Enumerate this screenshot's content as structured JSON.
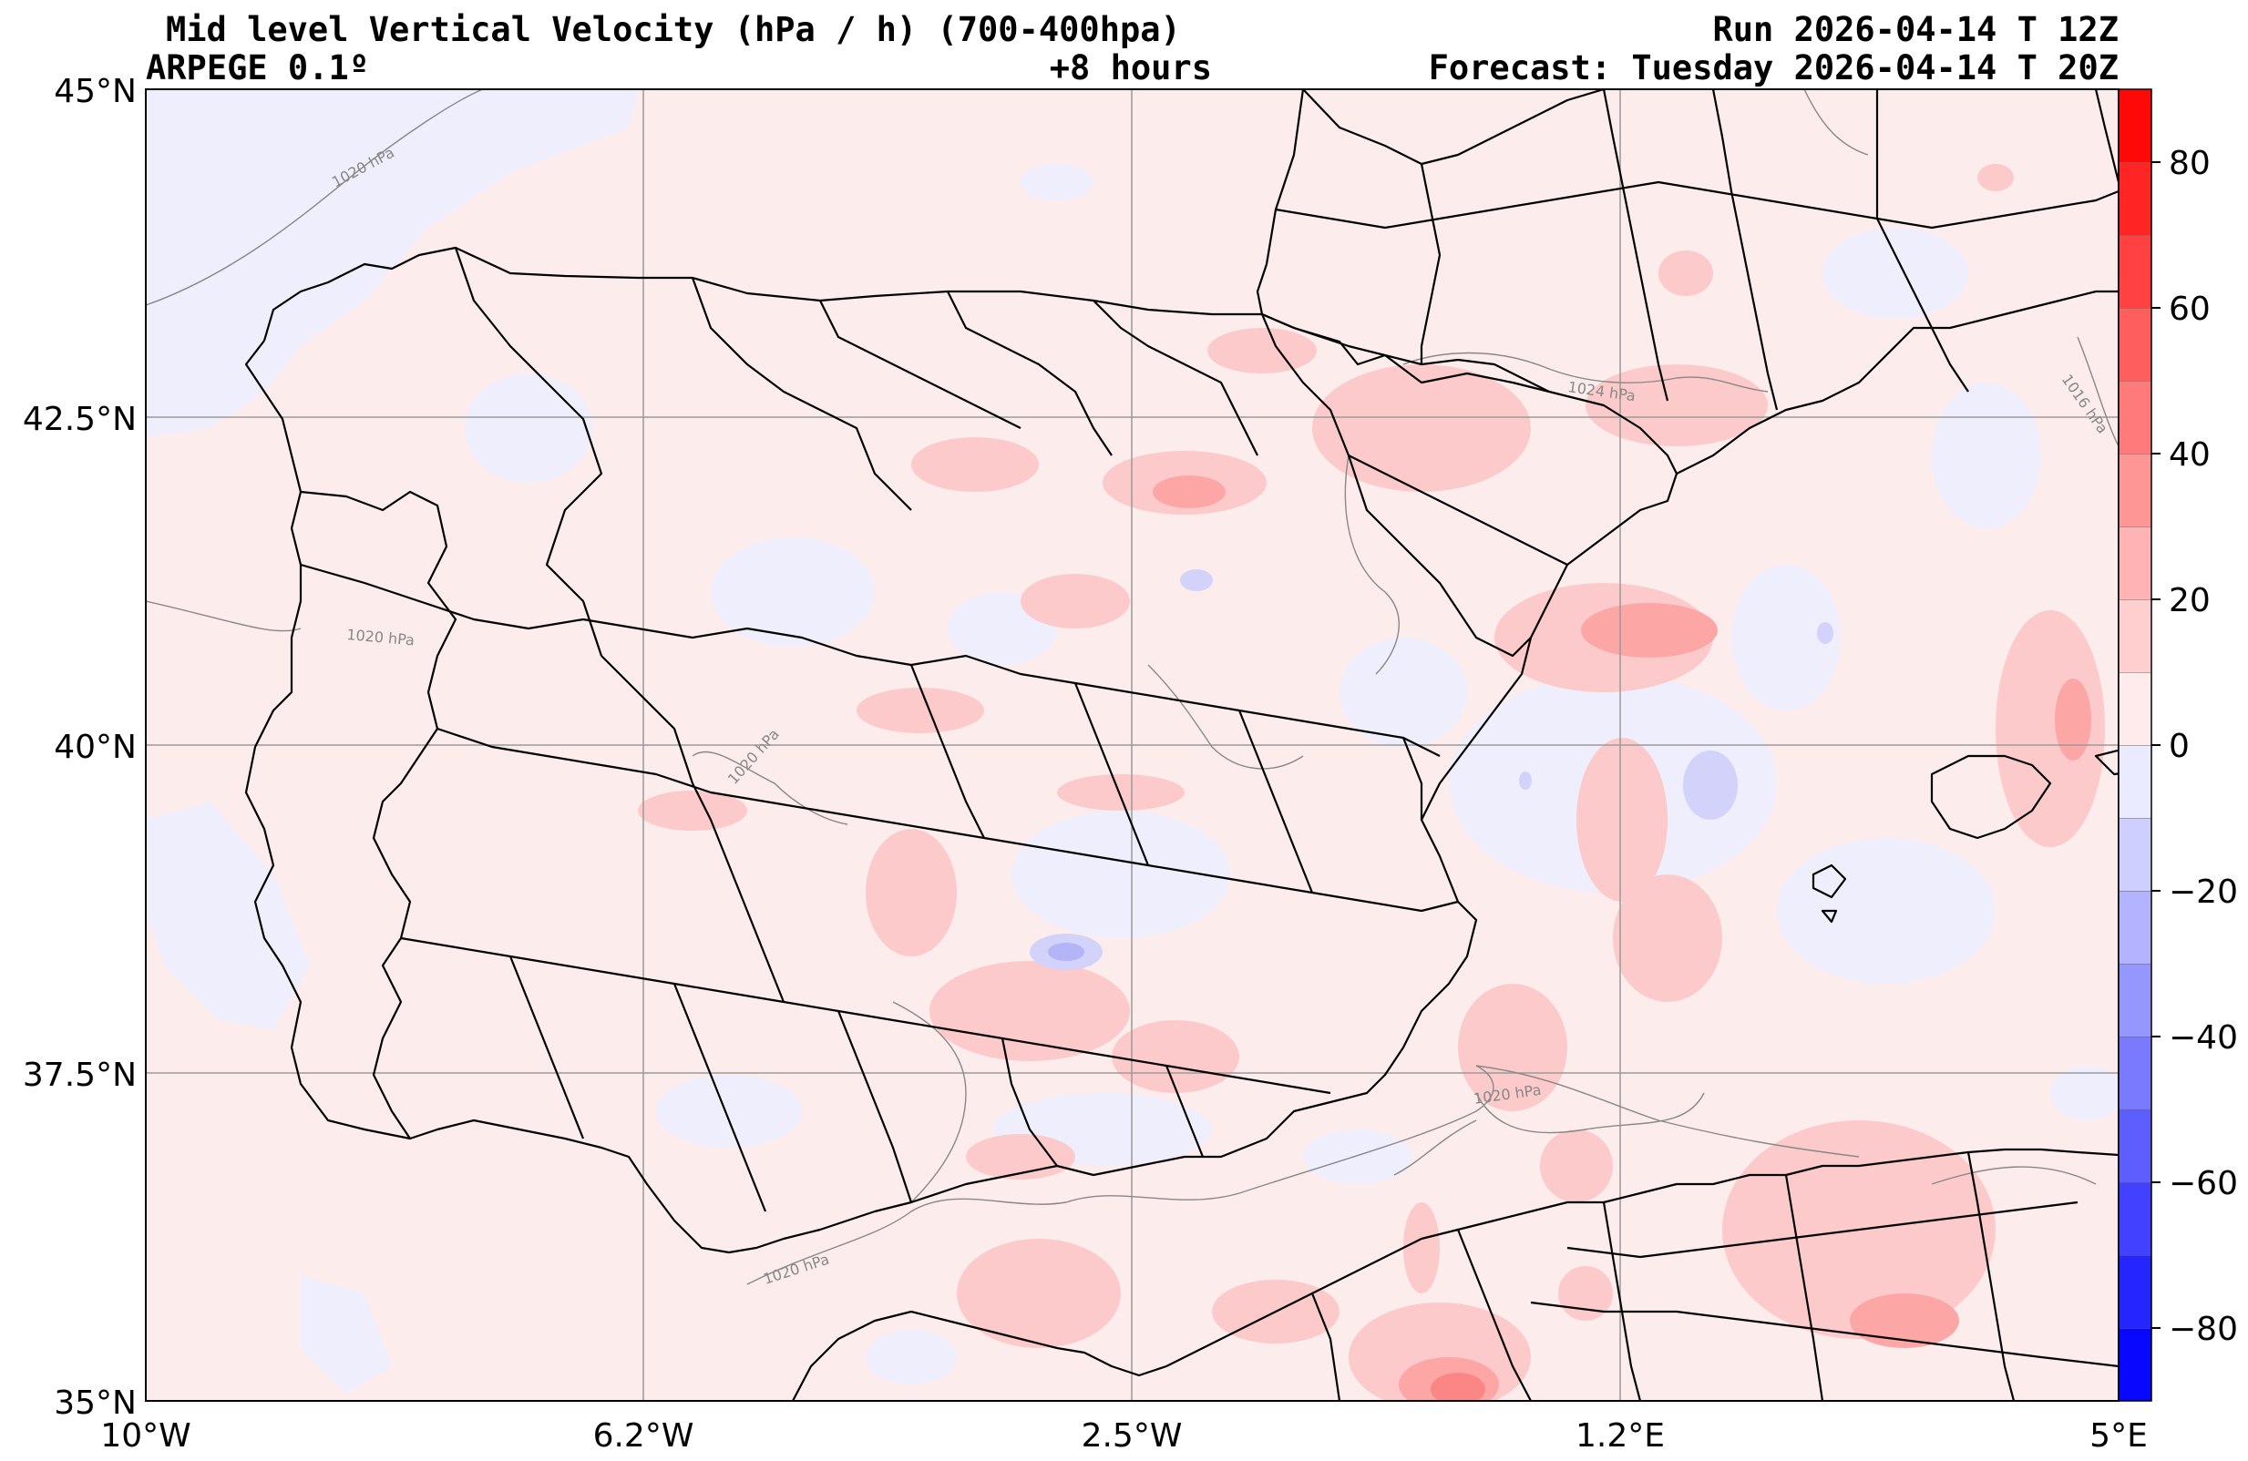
{
  "header": {
    "title": "Mid level Vertical Velocity (hPa / h)  (700-400hpa)",
    "model": "ARPEGE 0.1º",
    "lead": "+8 hours",
    "run": "Run 2026-04-14 T 12Z",
    "forecast": "Forecast: Tuesday 2026-04-14 T 20Z"
  },
  "map": {
    "extent": {
      "lon_min": -10,
      "lon_max": 5,
      "lat_min": 35,
      "lat_max": 45
    },
    "lat_labels": [
      "45°N",
      "42.5°N",
      "40°N",
      "37.5°N",
      "35°N"
    ],
    "lon_labels": [
      "10°W",
      "6.2°W",
      "2.5°W",
      "1.2°E",
      "5°E"
    ],
    "isobar_labels": [
      "1020 hPa",
      "1020 hPa",
      "1020 hPa",
      "1024 hPa",
      "1016 hPa",
      "1020 hPa",
      "1020 hPa"
    ],
    "colors": {
      "background_weak_positive": "#fdecec",
      "weak_negative": "#eeeefd",
      "positive": "#ff0000",
      "negative": "#0000ff",
      "grid": "#999999",
      "isobar": "#888888",
      "borders": "#000000"
    }
  },
  "colorbar": {
    "ticks": [
      "80",
      "60",
      "40",
      "20",
      "0",
      "−20",
      "−40",
      "−60",
      "−80"
    ],
    "range": [
      -90,
      90
    ],
    "levels": [
      -90,
      -80,
      -70,
      -60,
      -50,
      -40,
      -30,
      -20,
      -10,
      0,
      10,
      20,
      30,
      40,
      50,
      60,
      70,
      80,
      90
    ]
  }
}
